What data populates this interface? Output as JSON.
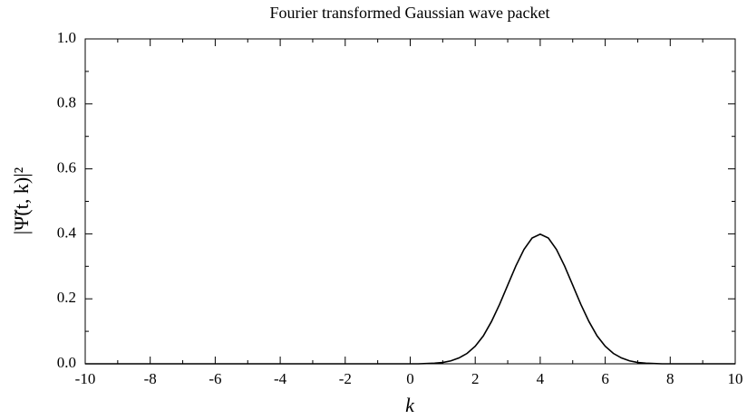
{
  "chart_data": {
    "type": "line",
    "title": "Fourier transformed Gaussian wave packet",
    "xlabel": "k",
    "ylabel": "|Ψ̃(t, k)|²",
    "x": [
      -10,
      -9,
      -8,
      -7,
      -6,
      -5,
      -4,
      -3,
      -2,
      -1,
      0,
      0.25,
      0.5,
      0.75,
      1,
      1.25,
      1.5,
      1.75,
      2,
      2.25,
      2.5,
      2.75,
      3,
      3.25,
      3.5,
      3.75,
      4,
      4.25,
      4.5,
      4.75,
      5,
      5.25,
      5.5,
      5.75,
      6,
      6.25,
      6.5,
      6.75,
      7,
      7.25,
      7.5,
      7.75,
      8,
      9,
      10
    ],
    "series": [
      {
        "color": "#000000",
        "values": [
          0,
          0,
          0,
          0,
          0,
          0,
          0,
          0,
          0,
          0,
          0,
          0,
          0.001,
          0.002,
          0.004,
          0.009,
          0.018,
          0.032,
          0.054,
          0.086,
          0.13,
          0.183,
          0.242,
          0.301,
          0.352,
          0.387,
          0.399,
          0.387,
          0.352,
          0.301,
          0.242,
          0.183,
          0.13,
          0.086,
          0.054,
          0.032,
          0.018,
          0.009,
          0.004,
          0.002,
          0.001,
          0,
          0,
          0,
          0
        ]
      }
    ],
    "xlim": [
      -10,
      10
    ],
    "xticks": [
      -10,
      -8,
      -6,
      -4,
      -2,
      0,
      2,
      4,
      6,
      8,
      10
    ],
    "xminorticks": [
      -9,
      -7,
      -5,
      -3,
      -1,
      1,
      3,
      5,
      7,
      9
    ],
    "ylim": [
      0,
      1
    ],
    "yticks": [
      {
        "value": 0,
        "label": "0.0"
      },
      0.2,
      0.4,
      0.6,
      0.8,
      {
        "value": 1,
        "label": "1.0"
      }
    ],
    "yminorticks": [
      0.1,
      0.3,
      0.5,
      0.7,
      0.9
    ],
    "grid": false
  }
}
